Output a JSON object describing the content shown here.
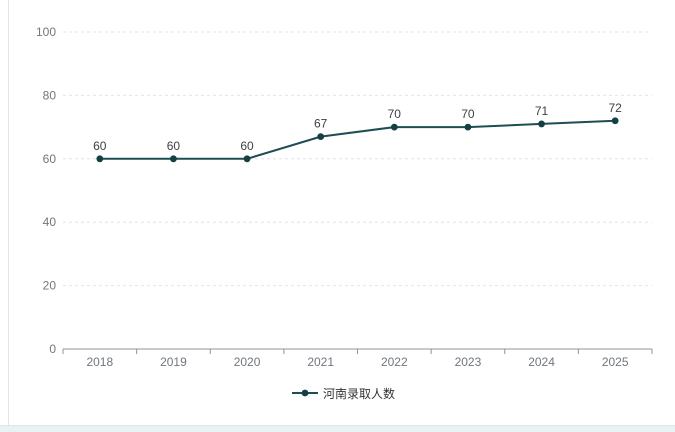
{
  "chart_data": {
    "type": "line",
    "title": "",
    "xlabel": "",
    "ylabel": "",
    "categories": [
      "2018",
      "2019",
      "2020",
      "2021",
      "2022",
      "2023",
      "2024",
      "2025"
    ],
    "series": [
      {
        "name": "河南录取人数",
        "values": [
          60,
          60,
          60,
          67,
          70,
          70,
          71,
          72
        ],
        "color": "#1d4e52",
        "point_color": "#143f44"
      }
    ],
    "ylim": [
      0,
      100
    ],
    "y_ticks": [
      0,
      20,
      40,
      60,
      80,
      100
    ],
    "grid": "horizontal dashed",
    "data_labels": true,
    "legend_position": "bottom-center"
  },
  "colors": {
    "background": "#ffffff",
    "grid_line": "#e0e4ea",
    "axis_line": "#8d949c",
    "axis_label": "#71767f",
    "data_label": "#3d4045",
    "legend_text": "#333333",
    "card_border": "#e3e3e3",
    "footer_strip": "#eaf1f4",
    "footer_strip_edge": "#d9e6ea"
  }
}
